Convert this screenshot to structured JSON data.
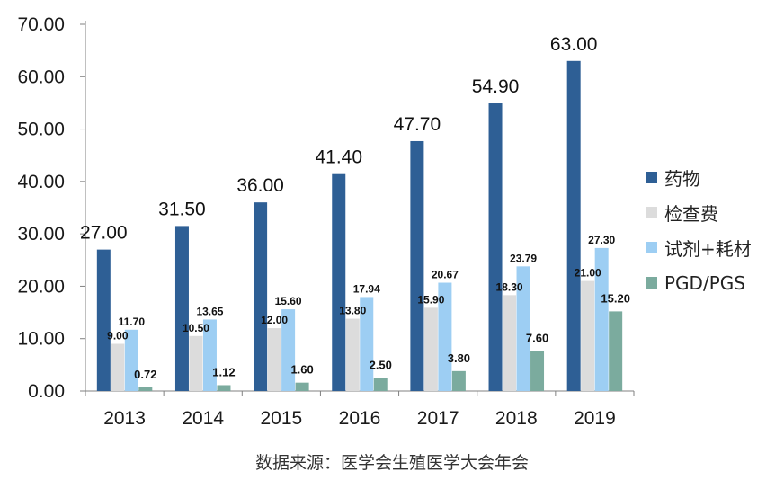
{
  "chart_data": {
    "type": "bar",
    "categories": [
      "2013",
      "2014",
      "2015",
      "2016",
      "2017",
      "2018",
      "2019"
    ],
    "series": [
      {
        "name": "药物",
        "color": "#2e5f95",
        "values": [
          27.0,
          31.5,
          36.0,
          41.4,
          47.7,
          54.9,
          63.0
        ],
        "labels": [
          "27.00",
          "31.50",
          "36.00",
          "41.40",
          "47.70",
          "54.90",
          "63.00"
        ]
      },
      {
        "name": "检查费",
        "color": "#dcdcdc",
        "values": [
          9.0,
          10.5,
          12.0,
          13.8,
          15.9,
          18.3,
          21.0
        ],
        "labels": [
          "9.00",
          "10.50",
          "12.00",
          "13.80",
          "15.90",
          "18.30",
          "21.00"
        ]
      },
      {
        "name": "试剂+耗材",
        "color": "#9dcef3",
        "values": [
          11.7,
          13.65,
          15.6,
          17.94,
          20.67,
          23.79,
          27.3
        ],
        "labels": [
          "11.70",
          "13.65",
          "15.60",
          "17.94",
          "20.67",
          "23.79",
          "27.30"
        ]
      },
      {
        "name": "PGD/PGS",
        "color": "#7bab9e",
        "values": [
          0.72,
          1.12,
          1.6,
          2.5,
          3.8,
          7.6,
          15.2
        ],
        "labels": [
          "0.72",
          "1.12",
          "1.60",
          "2.50",
          "3.80",
          "7.60",
          "15.20"
        ]
      }
    ],
    "yticks": [
      "0.00",
      "10.00",
      "20.00",
      "30.00",
      "40.00",
      "50.00",
      "60.00",
      "70.00"
    ],
    "ylim": [
      0,
      70
    ],
    "grid": false,
    "legend": "right",
    "title": "",
    "xlabel": "",
    "ylabel": ""
  },
  "source": "数据来源：医学会生殖医学大会年会"
}
